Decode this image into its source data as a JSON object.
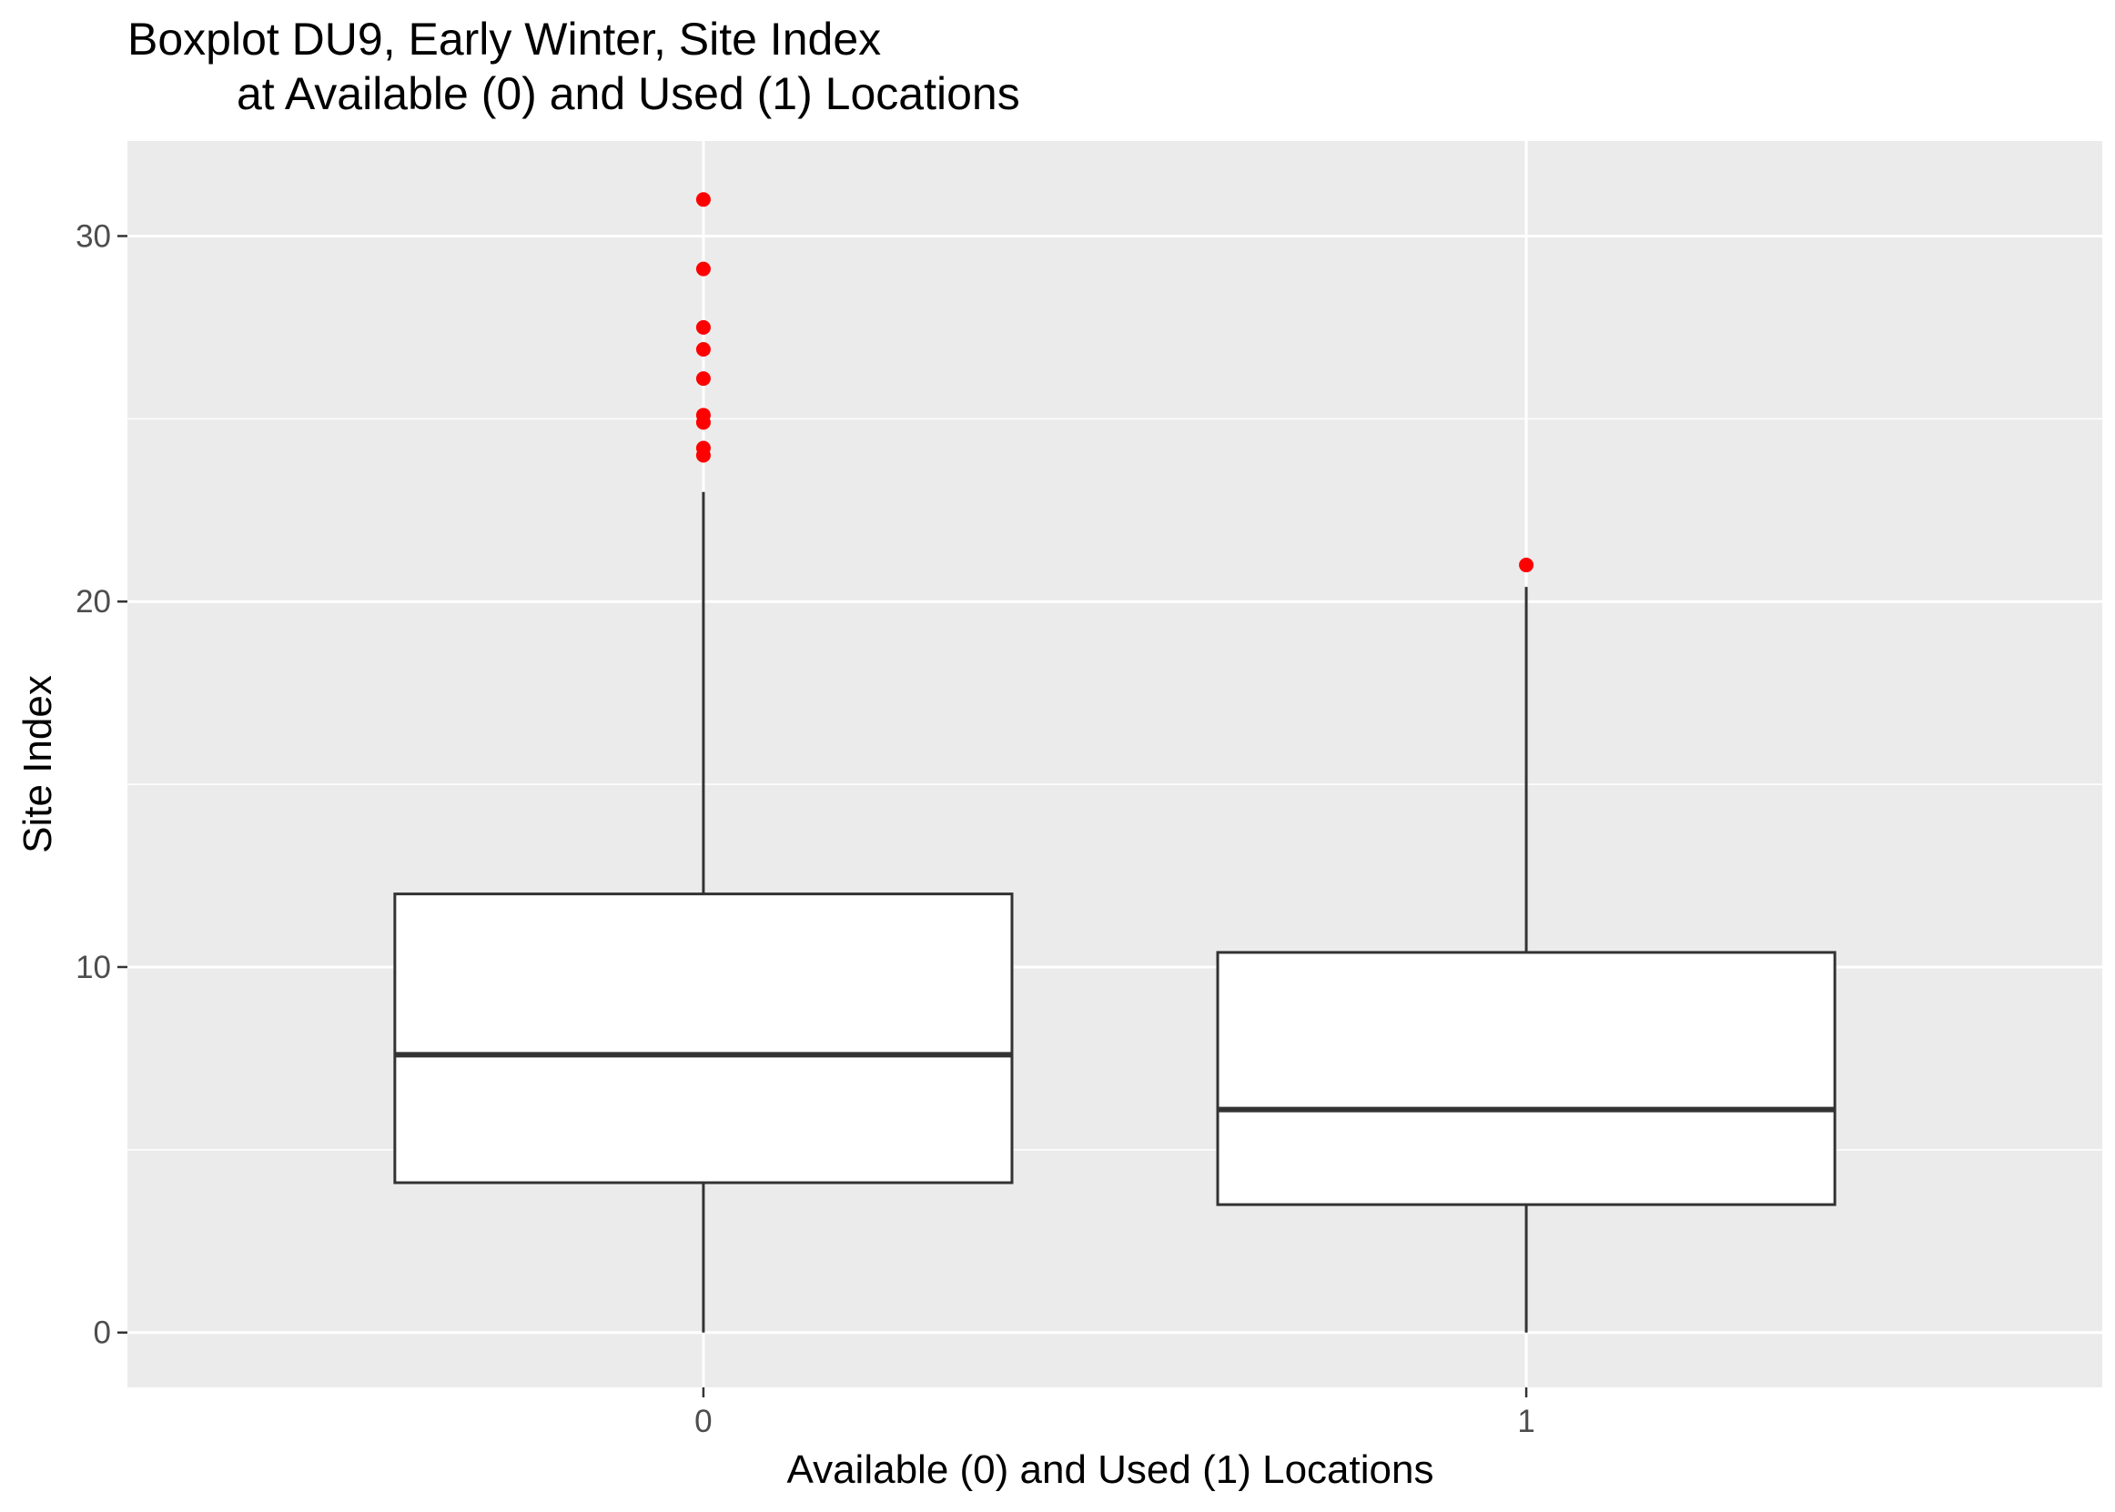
{
  "chart_data": {
    "type": "boxplot",
    "title": "Boxplot DU9, Early Winter, Site Index",
    "subtitle": "at Available (0) and Used (1) Locations",
    "xlabel": "Available (0) and Used (1) Locations",
    "ylabel": "Site Index",
    "categories": [
      "0",
      "1"
    ],
    "ylim": [
      -1.5,
      32.6
    ],
    "yticks": [
      0,
      10,
      20,
      30
    ],
    "grid": true,
    "legend": "none",
    "boxes": [
      {
        "category": "0",
        "whisker_low": 0,
        "q1": 4.1,
        "median": 7.6,
        "q3": 12.0,
        "whisker_high": 23.0,
        "outliers": [
          31.0,
          29.1,
          27.5,
          26.9,
          26.1,
          25.1,
          24.9,
          24.2,
          24.0
        ]
      },
      {
        "category": "1",
        "whisker_low": 0,
        "q1": 3.5,
        "median": 6.1,
        "q3": 10.4,
        "whisker_high": 20.4,
        "outliers": [
          21.0
        ]
      }
    ],
    "colors": {
      "panel": "#ebebeb",
      "grid": "#ffffff",
      "box_fill": "#ffffff",
      "box_line": "#333333",
      "outlier": "#ff0000",
      "tick": "#333333"
    }
  }
}
